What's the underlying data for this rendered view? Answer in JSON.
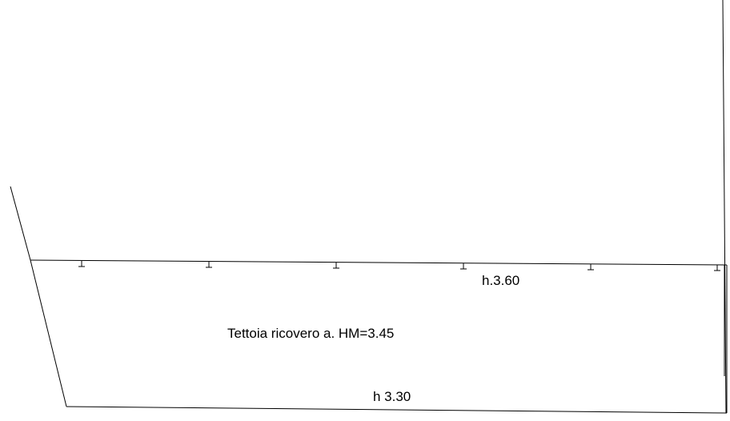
{
  "annotations": {
    "upper_height": "h.3.60",
    "title": "Tettoia ricovero a. HM=3.45",
    "lower_height": "h 3.30"
  },
  "colors": {
    "background": "#ffffff",
    "lines": "#000000"
  }
}
